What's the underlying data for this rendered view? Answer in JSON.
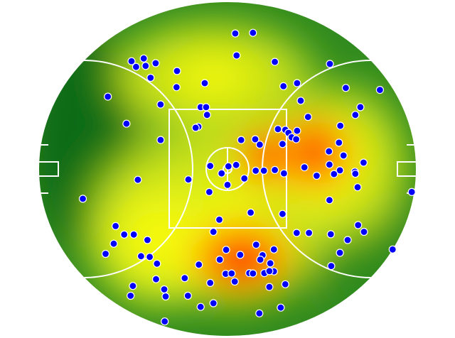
{
  "chart_data": {
    "type": "scatter",
    "description_free": true,
    "background": "heatmap",
    "heat_colors": [
      "#0b6b12",
      "#2f8a1f",
      "#7fbf2a",
      "#dbe81e",
      "#ffff00",
      "#ffc000",
      "#ff6000",
      "#ff0000"
    ],
    "point_color": "#0000ff",
    "point_stroke": "#ffffff",
    "line_color": "#ffffff",
    "xlim": [
      0,
      100
    ],
    "ylim": [
      0,
      100
    ],
    "points": [
      [
        51.7,
        9.9
      ],
      [
        55.6,
        9.7
      ],
      [
        52.0,
        16.4
      ],
      [
        28.9,
        18.1
      ],
      [
        31.6,
        17.3
      ],
      [
        34.2,
        18.7
      ],
      [
        29.9,
        19.8
      ],
      [
        32.0,
        19.5
      ],
      [
        38.9,
        21.0
      ],
      [
        33.1,
        23.0
      ],
      [
        60.4,
        18.3
      ],
      [
        72.5,
        18.9
      ],
      [
        38.8,
        25.8
      ],
      [
        45.0,
        24.6
      ],
      [
        62.3,
        25.5
      ],
      [
        65.3,
        24.6
      ],
      [
        76.0,
        26.0
      ],
      [
        83.5,
        26.6
      ],
      [
        23.7,
        28.6
      ],
      [
        66.1,
        29.8
      ],
      [
        35.3,
        30.9
      ],
      [
        44.1,
        31.7
      ],
      [
        45.3,
        31.7
      ],
      [
        79.2,
        31.7
      ],
      [
        45.5,
        34.0
      ],
      [
        78.1,
        34.0
      ],
      [
        67.7,
        34.6
      ],
      [
        27.8,
        36.6
      ],
      [
        43.6,
        37.5
      ],
      [
        43.0,
        37.8
      ],
      [
        74.8,
        37.2
      ],
      [
        61.1,
        38.2
      ],
      [
        62.7,
        38.4
      ],
      [
        63.4,
        39.3
      ],
      [
        65.3,
        38.7
      ],
      [
        64.1,
        40.6
      ],
      [
        53.0,
        41.4
      ],
      [
        35.3,
        41.4
      ],
      [
        56.1,
        41.2
      ],
      [
        57.1,
        42.8
      ],
      [
        62.1,
        42.6
      ],
      [
        65.1,
        41.2
      ],
      [
        74.5,
        42.2
      ],
      [
        72.3,
        44.8
      ],
      [
        75.5,
        46.0
      ],
      [
        79.9,
        48.1
      ],
      [
        46.2,
        49.1
      ],
      [
        50.2,
        49.2
      ],
      [
        48.7,
        51.3
      ],
      [
        51.9,
        48.8
      ],
      [
        66.9,
        49.5
      ],
      [
        72.4,
        48.7
      ],
      [
        74.7,
        50.4
      ],
      [
        78.0,
        50.8
      ],
      [
        56.2,
        50.5
      ],
      [
        58.0,
        50.5
      ],
      [
        60.4,
        50.3
      ],
      [
        62.4,
        51.3
      ],
      [
        69.6,
        52.0
      ],
      [
        73.4,
        51.5
      ],
      [
        78.1,
        51.4
      ],
      [
        53.7,
        52.8
      ],
      [
        30.3,
        53.2
      ],
      [
        41.4,
        53.1
      ],
      [
        50.0,
        54.7
      ],
      [
        78.6,
        55.4
      ],
      [
        46.0,
        56.8
      ],
      [
        18.2,
        58.8
      ],
      [
        72.4,
        59.2
      ],
      [
        55.1,
        62.9
      ],
      [
        62.1,
        63.3
      ],
      [
        48.2,
        65.0
      ],
      [
        78.7,
        66.6
      ],
      [
        25.4,
        66.9
      ],
      [
        46.9,
        68.6
      ],
      [
        27.3,
        69.4
      ],
      [
        29.4,
        69.4
      ],
      [
        65.2,
        68.9
      ],
      [
        72.7,
        69.3
      ],
      [
        80.0,
        68.6
      ],
      [
        32.4,
        71.0
      ],
      [
        76.4,
        71.0
      ],
      [
        25.0,
        72.1
      ],
      [
        23.2,
        75.1
      ],
      [
        49.7,
        73.9
      ],
      [
        52.8,
        75.4
      ],
      [
        56.3,
        72.4
      ],
      [
        60.2,
        73.8
      ],
      [
        57.7,
        75.5
      ],
      [
        74.7,
        74.8
      ],
      [
        86.3,
        73.8
      ],
      [
        31.0,
        75.8
      ],
      [
        34.5,
        78.0
      ],
      [
        32.9,
        76.0
      ],
      [
        57.2,
        76.8
      ],
      [
        48.3,
        76.8
      ],
      [
        43.7,
        78.3
      ],
      [
        59.4,
        77.9
      ],
      [
        60.2,
        80.3
      ],
      [
        72.8,
        78.7
      ],
      [
        49.6,
        81.0
      ],
      [
        50.9,
        80.9
      ],
      [
        54.8,
        80.8
      ],
      [
        58.1,
        80.8
      ],
      [
        59.2,
        80.2
      ],
      [
        46.2,
        83.7
      ],
      [
        51.6,
        83.3
      ],
      [
        55.6,
        80.9
      ],
      [
        34.3,
        82.6
      ],
      [
        40.6,
        82.3
      ],
      [
        29.2,
        84.6
      ],
      [
        36.1,
        85.6
      ],
      [
        62.7,
        84.1
      ],
      [
        59.2,
        84.9
      ],
      [
        28.7,
        87.5
      ],
      [
        36.4,
        87.7
      ],
      [
        41.3,
        87.5
      ],
      [
        46.9,
        89.7
      ],
      [
        44.1,
        90.8
      ],
      [
        61.7,
        91.0
      ],
      [
        57.0,
        92.7
      ],
      [
        36.2,
        95.1
      ],
      [
        90.5,
        56.8
      ],
      [
        67.9,
        68.9
      ]
    ]
  }
}
